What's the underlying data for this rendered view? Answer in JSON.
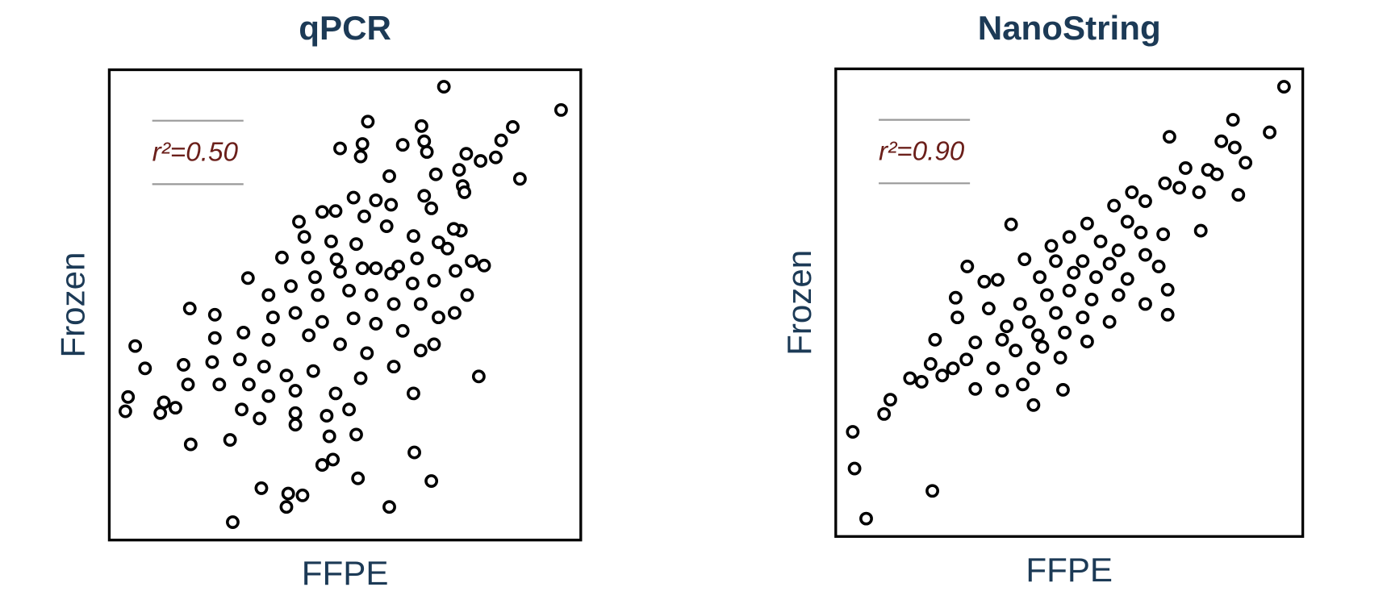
{
  "chart_data": [
    {
      "type": "scatter",
      "title": "qPCR",
      "x_label": "FFPE",
      "y_label": "Frozen",
      "annotation": "r²=0.50",
      "color": "#000000",
      "xlim": [
        0,
        527
      ],
      "ylim": [
        0,
        526
      ],
      "x": [
        374,
        505,
        289,
        349,
        451,
        438,
        258,
        283,
        328,
        352,
        355,
        281,
        399,
        415,
        432,
        313,
        365,
        391,
        459,
        395,
        397,
        273,
        298,
        352,
        360,
        315,
        212,
        238,
        253,
        285,
        393,
        385,
        340,
        218,
        248,
        276,
        310,
        368,
        378,
        193,
        222,
        254,
        298,
        323,
        344,
        405,
        419,
        155,
        230,
        258,
        283,
        315,
        339,
        363,
        387,
        178,
        203,
        233,
        268,
        293,
        318,
        348,
        400,
        368,
        90,
        118,
        183,
        208,
        238,
        273,
        298,
        328,
        386,
        29,
        118,
        150,
        178,
        223,
        258,
        288,
        348,
        363,
        40,
        83,
        115,
        146,
        173,
        198,
        228,
        318,
        413,
        21,
        61,
        74,
        88,
        123,
        156,
        178,
        208,
        253,
        281,
        340,
        18,
        57,
        148,
        168,
        208,
        243,
        268,
        91,
        135,
        246,
        276,
        208,
        341,
        238,
        250,
        278,
        360,
        170,
        200,
        216,
        198,
        313,
        138
      ],
      "y": [
        507,
        481,
        468,
        463,
        462,
        447,
        438,
        443,
        442,
        446,
        434,
        429,
        432,
        424,
        428,
        407,
        409,
        414,
        404,
        396,
        389,
        383,
        380,
        385,
        371,
        375,
        356,
        367,
        368,
        362,
        346,
        348,
        340,
        339,
        334,
        331,
        351,
        333,
        326,
        316,
        316,
        314,
        304,
        306,
        315,
        312,
        307,
        293,
        294,
        300,
        304,
        298,
        287,
        290,
        301,
        274,
        284,
        274,
        279,
        274,
        264,
        264,
        274,
        249,
        259,
        252,
        249,
        254,
        244,
        248,
        242,
        234,
        254,
        217,
        226,
        232,
        224,
        229,
        219,
        209,
        212,
        219,
        192,
        196,
        199,
        202,
        194,
        184,
        189,
        194,
        183,
        160,
        154,
        148,
        174,
        174,
        174,
        161,
        167,
        164,
        181,
        164,
        144,
        142,
        146,
        136,
        142,
        139,
        146,
        107,
        112,
        116,
        118,
        129,
        98,
        84,
        90,
        69,
        66,
        58,
        52,
        50,
        37,
        37,
        20
      ]
    },
    {
      "type": "scatter",
      "title": "NanoString",
      "x_label": "FFPE",
      "y_label": "Frozen",
      "annotation": "r²=0.90",
      "color": "#000000",
      "xlim": [
        0,
        522
      ],
      "ylim": [
        0,
        523
      ],
      "x": [
        501,
        444,
        485,
        373,
        431,
        446,
        458,
        391,
        416,
        426,
        450,
        368,
        384,
        406,
        331,
        346,
        311,
        196,
        281,
        326,
        341,
        366,
        408,
        261,
        296,
        316,
        346,
        241,
        147,
        211,
        246,
        276,
        306,
        361,
        166,
        181,
        228,
        266,
        291,
        326,
        371,
        134,
        171,
        206,
        236,
        261,
        286,
        316,
        346,
        371,
        136,
        191,
        216,
        246,
        276,
        306,
        156,
        186,
        226,
        256,
        281,
        111,
        146,
        201,
        231,
        251,
        106,
        131,
        176,
        221,
        83,
        96,
        119,
        156,
        186,
        209,
        254,
        61,
        54,
        221,
        19,
        21,
        108,
        34
      ],
      "y": [
        503,
        466,
        452,
        447,
        442,
        435,
        418,
        412,
        410,
        405,
        382,
        395,
        390,
        385,
        385,
        375,
        370,
        349,
        350,
        352,
        340,
        338,
        342,
        335,
        330,
        320,
        315,
        325,
        302,
        310,
        308,
        308,
        305,
        302,
        285,
        287,
        290,
        295,
        290,
        288,
        276,
        267,
        255,
        260,
        270,
        275,
        265,
        270,
        260,
        248,
        245,
        235,
        240,
        250,
        245,
        240,
        217,
        220,
        225,
        228,
        218,
        220,
        198,
        208,
        212,
        200,
        193,
        188,
        188,
        188,
        177,
        173,
        180,
        165,
        163,
        170,
        164,
        153,
        137,
        147,
        117,
        76,
        51,
        20
      ]
    }
  ]
}
